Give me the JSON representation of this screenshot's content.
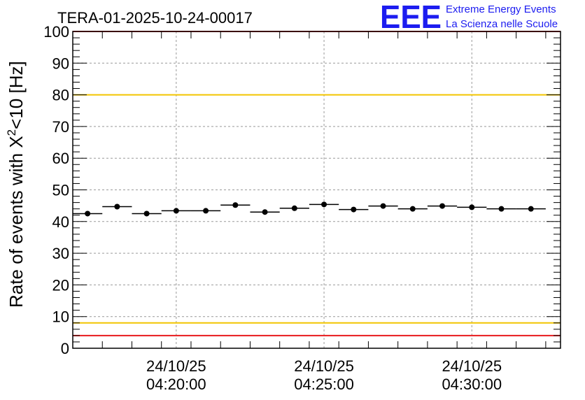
{
  "chart_data": {
    "type": "scatter",
    "title": "TERA-01-2025-10-24-00017",
    "ylabel_prefix": "Rate of events with X",
    "ylabel_sup": "2",
    "ylabel_suffix": "<10 [Hz]",
    "ylim": [
      0,
      100
    ],
    "yticks": [
      0,
      10,
      20,
      30,
      40,
      50,
      60,
      70,
      80,
      90,
      100
    ],
    "xlim_minutes": [
      15.0,
      31.5
    ],
    "xticks": [
      {
        "minute": 18.5,
        "date": "24/10/25",
        "time": "04:20:00"
      },
      {
        "minute": 23.5,
        "date": "24/10/25",
        "time": "04:25:00"
      },
      {
        "minute": 28.5,
        "date": "24/10/25",
        "time": "04:30:00"
      }
    ],
    "grid": true,
    "bin_width_minutes": 1.0,
    "series": [
      {
        "name": "rate",
        "x": [
          15.5,
          16.5,
          17.5,
          18.5,
          19.5,
          20.5,
          21.5,
          22.5,
          23.5,
          24.5,
          25.5,
          26.5,
          27.5,
          28.5,
          29.5,
          30.5
        ],
        "values": [
          42.5,
          44.7,
          42.5,
          43.4,
          43.4,
          45.2,
          43.0,
          44.2,
          45.4,
          43.8,
          44.9,
          44.0,
          44.9,
          44.5,
          44.0,
          44.0
        ]
      }
    ],
    "threshold_lines": [
      {
        "value": 100,
        "color": "#e8191c"
      },
      {
        "value": 80,
        "color": "#f2c500"
      },
      {
        "value": 8,
        "color": "#f2c500"
      },
      {
        "value": 4,
        "color": "#e8191c"
      }
    ]
  },
  "logo": {
    "mark": "EEE",
    "line1": "Extreme Energy Events",
    "line2": "La Scienza nelle Scuole"
  },
  "colors": {
    "marker": "#000000",
    "grid": "#999999",
    "logo": "#1c1cf0"
  }
}
